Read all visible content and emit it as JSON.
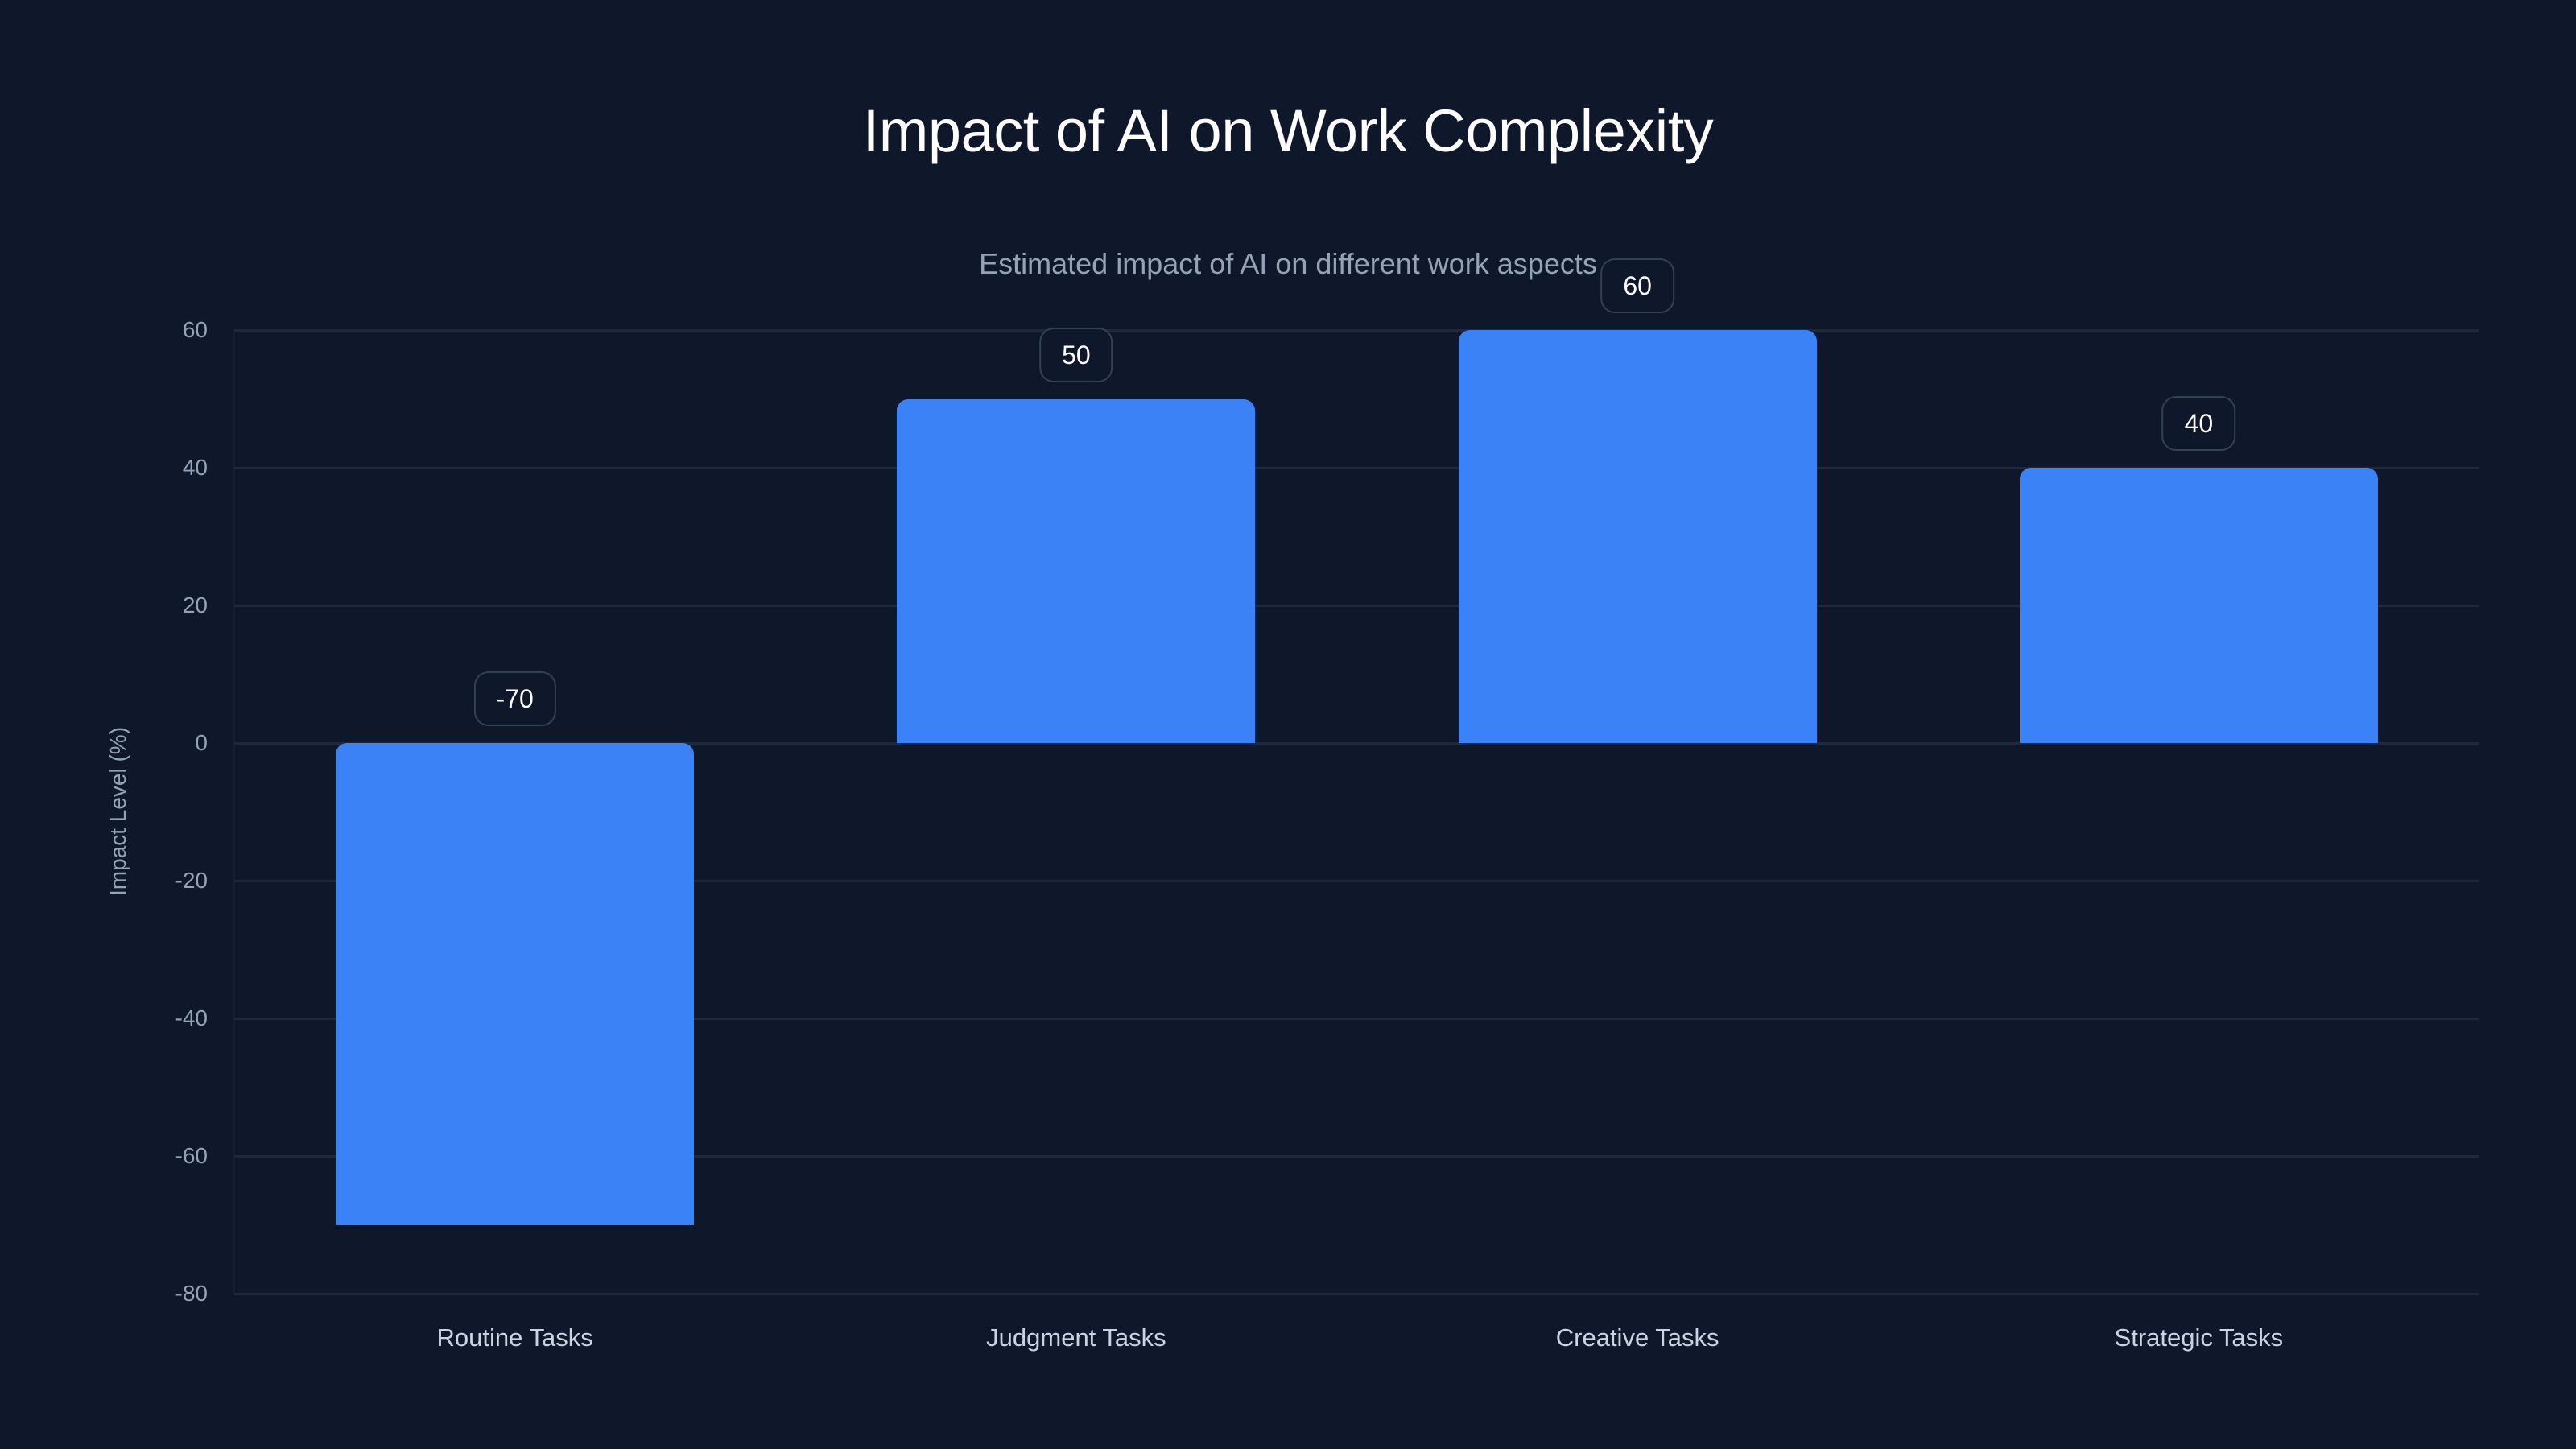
{
  "header": {
    "title": "Impact of AI on Work Complexity",
    "subtitle": "Estimated impact of AI on different work aspects"
  },
  "colors": {
    "background": "#0f172a",
    "bar": "#3b82f6",
    "grid": "#1e293b",
    "label_border": "#334155",
    "axis_text": "#94a3b8",
    "category_text": "#cbd5e1",
    "title_text": "#ffffff"
  },
  "axis": {
    "y_title": "Impact Level (%)",
    "y_ticks": [
      "60",
      "40",
      "20",
      "0",
      "-20",
      "-40",
      "-60",
      "-80"
    ]
  },
  "categories": [
    "Routine Tasks",
    "Judgment Tasks",
    "Creative Tasks",
    "Strategic Tasks"
  ],
  "value_labels": [
    "-70",
    "50",
    "60",
    "40"
  ],
  "chart_data": {
    "type": "bar",
    "title": "Impact of AI on Work Complexity",
    "subtitle": "Estimated impact of AI on different work aspects",
    "categories": [
      "Routine Tasks",
      "Judgment Tasks",
      "Creative Tasks",
      "Strategic Tasks"
    ],
    "values": [
      -70,
      50,
      60,
      40
    ],
    "xlabel": "",
    "ylabel": "Impact Level (%)",
    "ylim": [
      -80,
      60
    ],
    "yticks": [
      60,
      40,
      20,
      0,
      -20,
      -40,
      -60,
      -80
    ],
    "grid": true,
    "legend": null,
    "data_labels": true
  }
}
